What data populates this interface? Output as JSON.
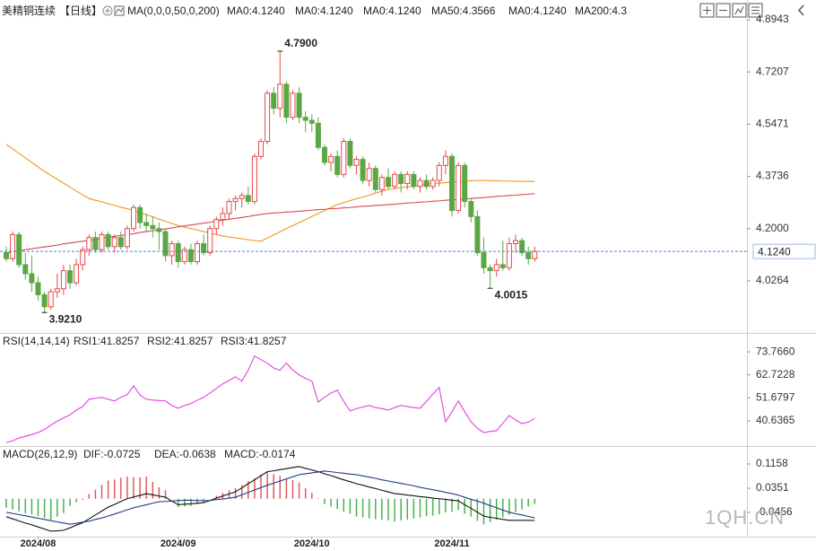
{
  "watermark": "1QH.CN",
  "chart_data": [
    {
      "type": "candlestick",
      "header": [
        {
          "label": "美精铜连续",
          "color": "#222222"
        },
        {
          "label": "【日线】",
          "color": "#f0961e"
        },
        {
          "label": "MA(0,0,0,50,0,200)",
          "color": "#222222"
        },
        {
          "label": "MA0:4.1240",
          "color": "#333333"
        },
        {
          "label": "MA0:4.1240",
          "color": "#2a50d0"
        },
        {
          "label": "MA0:4.1240",
          "color": "#d030d0"
        },
        {
          "label": "MA50:4.3566",
          "color": "#f0961e"
        },
        {
          "label": "MA0:4.1240",
          "color": "#999999"
        },
        {
          "label": "MA200:4.3",
          "color": "#e04848"
        }
      ],
      "categories": [
        null,
        null,
        null,
        null,
        null,
        "2024/08",
        null,
        null,
        null,
        null,
        null,
        null,
        null,
        null,
        null,
        null,
        null,
        null,
        null,
        null,
        null,
        null,
        null,
        null,
        null,
        null,
        null,
        "2024/09",
        null,
        null,
        null,
        null,
        null,
        null,
        null,
        null,
        null,
        null,
        null,
        null,
        null,
        null,
        null,
        null,
        null,
        null,
        null,
        null,
        "2024/10",
        null,
        null,
        null,
        null,
        null,
        null,
        null,
        null,
        null,
        null,
        null,
        null,
        null,
        null,
        null,
        null,
        null,
        null,
        null,
        null,
        null,
        "2024/11",
        null,
        null,
        null,
        null,
        null,
        null,
        null,
        null,
        null,
        null,
        null,
        null,
        null
      ],
      "open": [
        4.12,
        4.1,
        4.18,
        4.08,
        4.05,
        4.02,
        3.98,
        3.94,
        3.99,
        4.0,
        4.06,
        4.02,
        4.08,
        4.13,
        4.17,
        4.13,
        4.18,
        4.14,
        4.17,
        4.14,
        4.2,
        4.27,
        4.22,
        4.21,
        4.2,
        4.19,
        4.11,
        4.15,
        4.09,
        4.13,
        4.09,
        4.15,
        4.12,
        4.2,
        4.23,
        4.25,
        4.29,
        4.3,
        4.31,
        4.29,
        4.44,
        4.49,
        4.65,
        4.6,
        4.68,
        4.57,
        4.65,
        4.57,
        4.56,
        4.55,
        4.47,
        4.42,
        4.44,
        4.38,
        4.49,
        4.41,
        4.43,
        4.36,
        4.4,
        4.33,
        4.37,
        4.34,
        4.38,
        4.35,
        4.38,
        4.34,
        4.36,
        4.34,
        4.36,
        4.41,
        4.44,
        4.26,
        4.41,
        4.29,
        4.24,
        4.12,
        4.07,
        4.06,
        4.08,
        4.07,
        4.15,
        4.16,
        4.12,
        4.1
      ],
      "high": [
        4.14,
        4.19,
        4.19,
        4.12,
        4.11,
        4.04,
        3.99,
        4.0,
        4.05,
        4.08,
        4.08,
        4.1,
        4.14,
        4.18,
        4.19,
        4.19,
        4.19,
        4.18,
        4.19,
        4.21,
        4.28,
        4.28,
        4.25,
        4.24,
        4.22,
        4.2,
        4.16,
        4.16,
        4.14,
        4.15,
        4.16,
        4.18,
        4.21,
        4.24,
        4.27,
        4.3,
        4.31,
        4.32,
        4.34,
        4.45,
        4.5,
        4.66,
        4.67,
        4.79,
        4.69,
        4.66,
        4.67,
        4.59,
        4.58,
        4.57,
        4.48,
        4.45,
        4.46,
        4.5,
        4.5,
        4.44,
        4.44,
        4.42,
        4.41,
        4.38,
        4.4,
        4.39,
        4.39,
        4.39,
        4.39,
        4.37,
        4.38,
        4.37,
        4.42,
        4.46,
        4.45,
        4.42,
        4.42,
        4.3,
        4.26,
        4.17,
        4.08,
        4.1,
        4.16,
        4.17,
        4.18,
        4.17,
        4.14,
        4.14
      ],
      "low": [
        4.09,
        4.09,
        4.07,
        4.03,
        3.99,
        3.96,
        3.921,
        3.93,
        3.97,
        3.98,
        4.0,
        4.01,
        4.06,
        4.11,
        4.12,
        4.12,
        4.13,
        4.12,
        4.13,
        4.13,
        4.19,
        4.2,
        4.19,
        4.17,
        4.13,
        4.09,
        4.08,
        4.07,
        4.08,
        4.08,
        4.08,
        4.11,
        4.11,
        4.18,
        4.21,
        4.23,
        4.26,
        4.27,
        4.28,
        4.28,
        4.43,
        4.48,
        4.58,
        4.57,
        4.55,
        4.56,
        4.55,
        4.52,
        4.52,
        4.46,
        4.41,
        4.39,
        4.37,
        4.37,
        4.4,
        4.38,
        4.35,
        4.34,
        4.32,
        4.31,
        4.33,
        4.33,
        4.32,
        4.33,
        4.33,
        4.32,
        4.33,
        4.33,
        4.34,
        4.38,
        4.24,
        4.25,
        4.27,
        4.22,
        4.11,
        4.05,
        4.0015,
        4.04,
        4.06,
        4.06,
        4.12,
        4.11,
        4.08,
        4.09
      ],
      "close": [
        4.1,
        4.18,
        4.08,
        4.05,
        4.02,
        3.98,
        3.94,
        3.99,
        4.0,
        4.06,
        4.02,
        4.08,
        4.13,
        4.17,
        4.13,
        4.18,
        4.14,
        4.17,
        4.14,
        4.2,
        4.27,
        4.22,
        4.21,
        4.2,
        4.19,
        4.11,
        4.15,
        4.09,
        4.13,
        4.09,
        4.15,
        4.12,
        4.2,
        4.23,
        4.25,
        4.29,
        4.3,
        4.31,
        4.29,
        4.44,
        4.49,
        4.65,
        4.6,
        4.68,
        4.57,
        4.65,
        4.57,
        4.56,
        4.55,
        4.47,
        4.42,
        4.44,
        4.38,
        4.49,
        4.41,
        4.43,
        4.36,
        4.4,
        4.33,
        4.37,
        4.34,
        4.38,
        4.35,
        4.38,
        4.34,
        4.36,
        4.34,
        4.36,
        4.41,
        4.44,
        4.26,
        4.41,
        4.29,
        4.24,
        4.12,
        4.07,
        4.06,
        4.08,
        4.07,
        4.15,
        4.16,
        4.12,
        4.1,
        4.124
      ],
      "up_color": "#e8484a",
      "down_color": "#5aa844",
      "series": [
        {
          "color": "#f0961e",
          "values": [
            4.48,
            4.465,
            4.45,
            4.435,
            4.42,
            4.405,
            4.39,
            4.377,
            4.364,
            4.351,
            4.338,
            4.325,
            4.312,
            4.3,
            4.294,
            4.289,
            4.283,
            4.277,
            4.271,
            4.266,
            4.26,
            4.253,
            4.246,
            4.239,
            4.231,
            4.224,
            4.217,
            4.21,
            4.205,
            4.2,
            4.195,
            4.19,
            4.185,
            4.18,
            4.175,
            4.172,
            4.169,
            4.166,
            4.163,
            4.16,
            4.158,
            4.168,
            4.179,
            4.189,
            4.2,
            4.21,
            4.22,
            4.23,
            4.24,
            4.25,
            4.26,
            4.27,
            4.28,
            4.286,
            4.293,
            4.299,
            4.305,
            4.311,
            4.318,
            4.324,
            4.33,
            4.333,
            4.336,
            4.339,
            4.341,
            4.344,
            4.347,
            4.35,
            4.351,
            4.353,
            4.354,
            4.356,
            4.357,
            4.359,
            4.36,
            4.36,
            4.359,
            4.359,
            4.358,
            4.358,
            4.357,
            4.357,
            4.357,
            4.3566
          ]
        },
        {
          "color": "#d84a4a",
          "values": [
            4.12,
            4.123,
            4.126,
            4.13,
            4.133,
            4.136,
            4.139,
            4.142,
            4.145,
            4.149,
            4.152,
            4.155,
            4.158,
            4.161,
            4.164,
            4.168,
            4.171,
            4.174,
            4.177,
            4.18,
            4.183,
            4.187,
            4.19,
            4.193,
            4.196,
            4.199,
            4.202,
            4.206,
            4.209,
            4.212,
            4.215,
            4.218,
            4.221,
            4.225,
            4.228,
            4.231,
            4.234,
            4.237,
            4.24,
            4.244,
            4.247,
            4.25,
            4.252,
            4.253,
            4.255,
            4.256,
            4.258,
            4.259,
            4.261,
            4.263,
            4.264,
            4.266,
            4.267,
            4.269,
            4.27,
            4.272,
            4.274,
            4.275,
            4.277,
            4.278,
            4.28,
            4.281,
            4.283,
            4.285,
            4.286,
            4.288,
            4.289,
            4.291,
            4.292,
            4.294,
            4.296,
            4.297,
            4.299,
            4.3,
            4.302,
            4.303,
            4.305,
            4.307,
            4.308,
            4.31,
            4.311,
            4.313,
            4.314,
            4.316
          ]
        }
      ],
      "last_price": {
        "value": 4.124,
        "label": "4.1240",
        "color": "#4a7fd6"
      },
      "annotations": [
        {
          "label": "4.7900",
          "value": 4.79,
          "at": 43,
          "color": "#e04a3f"
        },
        {
          "label": "3.9210",
          "value": 3.921,
          "at": 6,
          "color": "#5aa844"
        },
        {
          "label": "4.0015",
          "value": 4.0015,
          "at": 76,
          "color": "#5aa844"
        }
      ],
      "ylim": [
        3.862,
        4.945
      ],
      "yticks": [
        4.8943,
        4.7207,
        4.5471,
        4.3736,
        {
          "value": 4.2,
          "label": "4.2000"
        },
        4.0264
      ],
      "grid": false
    },
    {
      "type": "line",
      "header": [
        {
          "label": "RSI(14,14,14)",
          "color": "#222222"
        },
        {
          "label": "RSI1:41.8257",
          "color": "#222222"
        },
        {
          "label": "RSI2:41.8257",
          "color": "#2a50d0"
        },
        {
          "label": "RSI3:41.8257",
          "color": "#d030d0"
        }
      ],
      "series": [
        {
          "color": "#e040e0",
          "values": [
            30.2,
            31,
            32.4,
            33.2,
            34,
            35,
            36.5,
            38.5,
            40.5,
            42,
            43.5,
            45.8,
            47.5,
            51,
            51.5,
            51.9,
            51,
            50.2,
            52,
            53.2,
            57.5,
            53,
            51,
            50.6,
            50.4,
            50.2,
            48,
            46.7,
            48,
            48.9,
            50.5,
            51.9,
            54,
            56.2,
            58.4,
            60,
            61.8,
            59.7,
            65,
            71.8,
            70,
            68.4,
            66,
            64.9,
            68.4,
            65,
            62.7,
            61,
            59.7,
            49.7,
            52,
            54,
            55.4,
            50,
            45.4,
            46.5,
            47.3,
            48,
            47,
            46.5,
            45.8,
            47,
            48,
            47.5,
            47,
            46.7,
            50,
            53.5,
            56.7,
            40.2,
            45,
            50.2,
            45,
            40.2,
            37,
            35,
            35.5,
            35.9,
            39.5,
            43.2,
            41,
            39.3,
            40,
            41.8257
          ]
        }
      ],
      "ylim": [
        29.4,
        82.0
      ],
      "yticks": [
        {
          "value": 73.766,
          "label": "73.7660"
        },
        62.7228,
        51.6797,
        40.6365
      ],
      "grid": false
    },
    {
      "type": "macd",
      "header": [
        {
          "label": "MACD(26,12,9)",
          "color": "#222222"
        },
        {
          "label": "DIF:-0.0725",
          "color": "#222222"
        },
        {
          "label": "DEA:-0.0638",
          "color": "#2a50d0"
        },
        {
          "label": "MACD:-0.0174",
          "color": "#d030d0"
        }
      ],
      "series": [
        {
          "color": "#111111",
          "values": [
            -0.06,
            -0.067,
            -0.074,
            -0.081,
            -0.087,
            -0.094,
            -0.101,
            -0.108,
            -0.107,
            -0.105,
            -0.097,
            -0.088,
            -0.08,
            -0.067,
            -0.054,
            -0.041,
            -0.028,
            -0.019,
            -0.009,
            0.0,
            0.006,
            0.011,
            0.017,
            0.013,
            0.009,
            0.005,
            -0.008,
            -0.02,
            -0.018,
            -0.017,
            -0.015,
            -0.013,
            -0.006,
            0.002,
            0.009,
            0.016,
            0.023,
            0.036,
            0.05,
            0.063,
            0.077,
            0.09,
            0.093,
            0.097,
            0.1,
            0.104,
            0.107,
            0.101,
            0.096,
            0.09,
            0.083,
            0.077,
            0.07,
            0.063,
            0.057,
            0.05,
            0.045,
            0.039,
            0.034,
            0.028,
            0.023,
            0.017,
            0.015,
            0.012,
            0.01,
            0.007,
            0.005,
            0.002,
            0.0,
            -0.002,
            -0.005,
            -0.007,
            -0.02,
            -0.032,
            -0.045,
            -0.058,
            -0.062,
            -0.065,
            -0.069,
            -0.072,
            -0.072,
            -0.072,
            -0.072,
            -0.0725
          ]
        },
        {
          "color": "#1e3a8a",
          "values": [
            -0.045,
            -0.049,
            -0.053,
            -0.057,
            -0.061,
            -0.065,
            -0.069,
            -0.073,
            -0.077,
            -0.081,
            -0.085,
            -0.082,
            -0.078,
            -0.075,
            -0.069,
            -0.064,
            -0.058,
            -0.051,
            -0.044,
            -0.037,
            -0.03,
            -0.025,
            -0.02,
            -0.015,
            -0.01,
            -0.009,
            -0.008,
            -0.006,
            -0.005,
            -0.005,
            -0.006,
            -0.006,
            -0.006,
            -0.003,
            -0.001,
            0.002,
            0.005,
            0.013,
            0.021,
            0.029,
            0.037,
            0.045,
            0.052,
            0.059,
            0.066,
            0.073,
            0.08,
            0.083,
            0.086,
            0.089,
            0.092,
            0.09,
            0.087,
            0.085,
            0.082,
            0.08,
            0.076,
            0.072,
            0.068,
            0.063,
            0.059,
            0.055,
            0.051,
            0.047,
            0.043,
            0.038,
            0.034,
            0.03,
            0.026,
            0.021,
            0.017,
            0.012,
            0.005,
            -0.002,
            -0.008,
            -0.015,
            -0.023,
            -0.03,
            -0.038,
            -0.045,
            -0.05,
            -0.054,
            -0.059,
            -0.0638
          ]
        }
      ],
      "histogram": {
        "pos_color": "#e05a5a",
        "neg_color": "#4caf50",
        "values": [
          -0.03,
          -0.036,
          -0.042,
          -0.048,
          -0.052,
          -0.058,
          -0.064,
          -0.07,
          -0.06,
          -0.048,
          -0.024,
          -0.012,
          -0.004,
          0.016,
          0.03,
          0.046,
          0.06,
          0.064,
          0.07,
          0.074,
          0.072,
          0.072,
          0.074,
          0.056,
          0.038,
          0.028,
          0.0,
          -0.028,
          -0.026,
          -0.024,
          -0.018,
          -0.014,
          0.0,
          0.01,
          0.02,
          0.028,
          0.036,
          0.046,
          0.058,
          0.068,
          0.08,
          0.09,
          0.082,
          0.076,
          0.068,
          0.062,
          0.054,
          0.036,
          0.02,
          0.002,
          -0.018,
          -0.026,
          -0.034,
          -0.044,
          -0.05,
          -0.06,
          -0.062,
          -0.066,
          -0.068,
          -0.07,
          -0.072,
          -0.076,
          -0.072,
          -0.07,
          -0.066,
          -0.062,
          -0.058,
          -0.056,
          -0.052,
          -0.046,
          -0.044,
          -0.038,
          -0.05,
          -0.06,
          -0.074,
          -0.086,
          -0.078,
          -0.07,
          -0.062,
          -0.054,
          -0.044,
          -0.036,
          -0.026,
          -0.0174
        ]
      },
      "ylim": [
        -0.1203,
        0.1666
      ],
      "yticks": [
        0.1158,
        0.0351,
        -0.0456
      ],
      "grid": false
    }
  ]
}
